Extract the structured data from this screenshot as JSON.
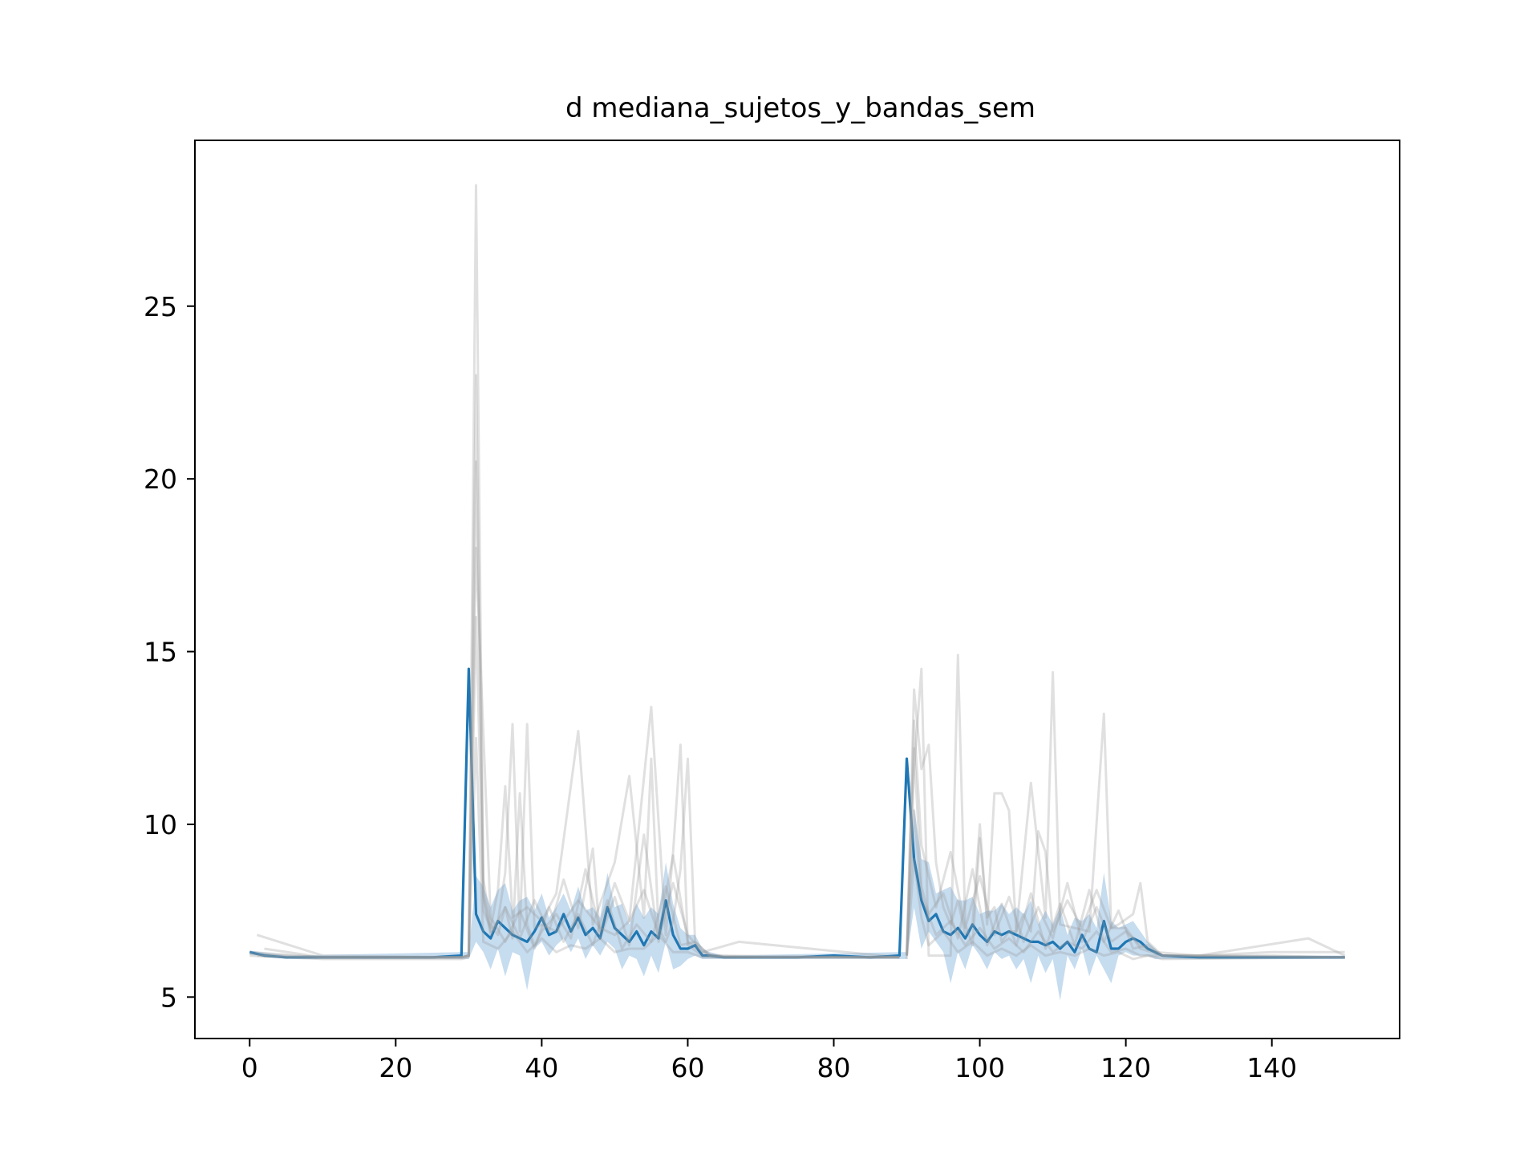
{
  "chart_data": {
    "type": "line",
    "title": "d mediana_sujetos_y_bandas_sem",
    "xlabel": "",
    "ylabel": "",
    "xlim": [
      -7.5,
      157.5
    ],
    "ylim": [
      3.8,
      29.8
    ],
    "x_ticks": [
      0,
      20,
      40,
      60,
      80,
      100,
      120,
      140
    ],
    "y_ticks": [
      5,
      10,
      15,
      20,
      25
    ],
    "grid": false,
    "legend": "none",
    "colors": {
      "median": "#1f77b4",
      "band": "#aecde8",
      "subjects": "#999999"
    },
    "median": {
      "x": [
        0,
        2,
        5,
        10,
        15,
        20,
        25,
        29,
        30,
        31,
        32,
        33,
        34,
        35,
        36,
        37,
        38,
        39,
        40,
        41,
        42,
        43,
        44,
        45,
        46,
        47,
        48,
        49,
        50,
        51,
        52,
        53,
        54,
        55,
        56,
        57,
        58,
        59,
        60,
        61,
        62,
        63,
        65,
        70,
        75,
        80,
        85,
        89,
        90,
        91,
        92,
        93,
        94,
        95,
        96,
        97,
        98,
        99,
        100,
        101,
        102,
        103,
        104,
        105,
        106,
        107,
        108,
        109,
        110,
        111,
        112,
        113,
        114,
        115,
        116,
        117,
        118,
        119,
        120,
        121,
        122,
        123,
        124,
        125,
        130,
        135,
        140,
        145,
        150
      ],
      "values": [
        6.3,
        6.2,
        6.15,
        6.15,
        6.15,
        6.15,
        6.15,
        6.2,
        14.5,
        7.4,
        6.9,
        6.7,
        7.2,
        7.0,
        6.8,
        6.7,
        6.6,
        6.9,
        7.3,
        6.8,
        6.9,
        7.4,
        6.9,
        7.3,
        6.8,
        7.0,
        6.7,
        7.6,
        7.0,
        6.8,
        6.6,
        6.9,
        6.5,
        6.9,
        6.7,
        7.8,
        6.8,
        6.4,
        6.4,
        6.5,
        6.2,
        6.2,
        6.15,
        6.15,
        6.15,
        6.2,
        6.15,
        6.2,
        11.9,
        9.0,
        7.8,
        7.2,
        7.4,
        6.9,
        6.8,
        7.0,
        6.7,
        7.1,
        6.8,
        6.6,
        6.9,
        6.8,
        6.9,
        6.8,
        6.7,
        6.6,
        6.6,
        6.5,
        6.6,
        6.4,
        6.6,
        6.3,
        6.8,
        6.4,
        6.3,
        7.2,
        6.4,
        6.4,
        6.6,
        6.7,
        6.6,
        6.4,
        6.3,
        6.2,
        6.15,
        6.15,
        6.15,
        6.15,
        6.15
      ]
    },
    "sem_band": {
      "x": [
        0,
        5,
        29,
        30,
        31,
        32,
        33,
        34,
        35,
        36,
        37,
        38,
        39,
        40,
        41,
        42,
        43,
        44,
        45,
        46,
        47,
        48,
        49,
        50,
        51,
        52,
        53,
        54,
        55,
        56,
        57,
        58,
        59,
        60,
        61,
        62,
        63,
        65,
        89,
        90,
        91,
        92,
        93,
        94,
        95,
        96,
        97,
        98,
        99,
        100,
        101,
        102,
        103,
        104,
        105,
        106,
        107,
        108,
        109,
        110,
        111,
        112,
        113,
        114,
        115,
        116,
        117,
        118,
        119,
        120,
        121,
        122,
        123,
        124,
        125,
        150
      ],
      "lower": [
        6.25,
        6.1,
        6.1,
        6.1,
        6.6,
        6.3,
        5.8,
        6.4,
        5.6,
        6.3,
        6.2,
        5.2,
        6.4,
        6.6,
        6.2,
        6.5,
        6.7,
        6.3,
        6.7,
        6.1,
        6.5,
        6.2,
        6.6,
        6.4,
        5.8,
        6.2,
        6.1,
        5.6,
        6.2,
        5.7,
        6.6,
        5.8,
        5.9,
        6.1,
        6.2,
        6.1,
        6.1,
        6.1,
        6.1,
        6.1,
        7.6,
        6.4,
        6.9,
        6.6,
        6.3,
        5.4,
        6.3,
        5.8,
        6.5,
        6.2,
        5.8,
        6.3,
        6.1,
        6.2,
        5.8,
        6.1,
        5.4,
        6.2,
        5.7,
        6.1,
        4.9,
        6.2,
        5.8,
        6.4,
        5.6,
        6.2,
        5.8,
        5.4,
        6.2,
        6.3,
        6.2,
        6.2,
        6.2,
        6.1,
        6.1,
        6.1
      ],
      "upper": [
        6.35,
        6.2,
        6.3,
        6.3,
        8.5,
        8.2,
        7.6,
        8.1,
        8.3,
        7.5,
        7.8,
        7.9,
        7.5,
        8.0,
        7.3,
        7.6,
        8.0,
        7.5,
        8.2,
        7.5,
        7.6,
        7.3,
        8.6,
        7.6,
        7.7,
        7.1,
        7.7,
        7.3,
        7.6,
        7.4,
        8.9,
        7.7,
        7.0,
        6.8,
        6.8,
        6.4,
        6.3,
        6.2,
        6.3,
        6.3,
        10.5,
        9.0,
        8.9,
        8.0,
        8.1,
        8.2,
        7.8,
        7.8,
        7.9,
        7.4,
        7.5,
        7.5,
        7.7,
        7.4,
        7.6,
        7.4,
        7.8,
        7.1,
        7.5,
        7.1,
        7.6,
        6.8,
        7.3,
        7.2,
        7.4,
        7.0,
        8.6,
        7.2,
        7.0,
        7.1,
        7.2,
        6.9,
        6.6,
        6.4,
        6.2,
        6.2
      ]
    },
    "subjects": [
      {
        "x": [
          1,
          5,
          10,
          20,
          29,
          30,
          31,
          32,
          33,
          34,
          35,
          36,
          37,
          38,
          39,
          40,
          42,
          45,
          48,
          50,
          52,
          55,
          57,
          58,
          59,
          60,
          62,
          65,
          70,
          80,
          89
        ],
        "values": [
          6.2,
          6.15,
          6.15,
          6.15,
          6.15,
          6.2,
          28.5,
          8.0,
          6.9,
          7.2,
          8.6,
          12.9,
          6.9,
          12.9,
          7.0,
          7.1,
          6.9,
          7.8,
          7.0,
          6.8,
          7.2,
          13.4,
          6.8,
          9.2,
          12.3,
          6.5,
          6.2,
          6.15,
          6.15,
          6.15,
          6.15
        ]
      },
      {
        "x": [
          1,
          10,
          29,
          30,
          31,
          32,
          33,
          34,
          35,
          36,
          38,
          40,
          42,
          45,
          47,
          50,
          52,
          54,
          55,
          56,
          57,
          58,
          59,
          60,
          61,
          63,
          70,
          89
        ],
        "values": [
          6.8,
          6.2,
          6.15,
          6.2,
          23.0,
          7.5,
          7.0,
          8.1,
          11.1,
          7.3,
          7.6,
          7.2,
          8.0,
          12.7,
          7.1,
          8.9,
          11.4,
          7.3,
          11.9,
          7.0,
          6.6,
          7.2,
          8.7,
          11.9,
          6.6,
          6.2,
          6.15,
          6.15
        ]
      },
      {
        "x": [
          0,
          10,
          29,
          30,
          31,
          32,
          33,
          34,
          35,
          36,
          37,
          38,
          39,
          40,
          42,
          44,
          46,
          48,
          50,
          52,
          54,
          56,
          58,
          60,
          62,
          65,
          89
        ],
        "values": [
          6.3,
          6.15,
          6.15,
          6.2,
          20.5,
          8.4,
          7.1,
          6.8,
          7.6,
          6.7,
          10.9,
          7.1,
          6.5,
          6.9,
          7.4,
          6.7,
          8.7,
          6.9,
          8.3,
          7.2,
          8.1,
          6.8,
          9.1,
          6.6,
          6.3,
          6.15,
          6.15
        ]
      },
      {
        "x": [
          2,
          10,
          29,
          30,
          31,
          32,
          33,
          35,
          37,
          39,
          41,
          43,
          45,
          47,
          48,
          50,
          52,
          54,
          56,
          58,
          60,
          62,
          67,
          89
        ],
        "values": [
          6.4,
          6.15,
          6.15,
          6.2,
          16.0,
          7.9,
          6.8,
          7.6,
          6.7,
          7.8,
          6.9,
          8.4,
          7.0,
          9.3,
          6.7,
          7.9,
          6.5,
          9.7,
          6.6,
          8.3,
          6.8,
          6.3,
          6.6,
          6.15
        ]
      },
      {
        "x": [
          0,
          10,
          29,
          30,
          31,
          33,
          35,
          37,
          39,
          41,
          43,
          45,
          47,
          49,
          51,
          53,
          55,
          57,
          59,
          61,
          63,
          89
        ],
        "values": [
          6.25,
          6.15,
          6.15,
          6.2,
          18.0,
          7.3,
          6.6,
          7.5,
          6.4,
          7.6,
          6.6,
          7.4,
          6.5,
          7.8,
          6.4,
          7.1,
          6.6,
          8.2,
          6.5,
          6.6,
          6.2,
          6.15
        ]
      },
      {
        "x": [
          0,
          10,
          29,
          30,
          31,
          32,
          34,
          36,
          38,
          40,
          42,
          44,
          46,
          48,
          50,
          52,
          54,
          56,
          58,
          60,
          62,
          89
        ],
        "values": [
          6.2,
          6.1,
          6.1,
          6.15,
          12.5,
          6.6,
          6.4,
          6.9,
          6.3,
          6.7,
          6.3,
          6.5,
          6.4,
          6.7,
          6.3,
          6.4,
          6.4,
          6.8,
          6.3,
          6.3,
          6.15,
          6.15
        ]
      },
      {
        "x": [
          90,
          91,
          92,
          93,
          94,
          95,
          96,
          97,
          98,
          99,
          100,
          101,
          102,
          103,
          104,
          105,
          107,
          109,
          110,
          111,
          113,
          115,
          117,
          118,
          119,
          121,
          122,
          123,
          125,
          130,
          140,
          150
        ],
        "values": [
          6.2,
          11.6,
          14.5,
          6.2,
          6.2,
          6.2,
          6.2,
          14.9,
          7.1,
          6.5,
          9.6,
          7.3,
          7.6,
          6.6,
          6.9,
          6.9,
          11.2,
          7.3,
          14.4,
          7.1,
          7.0,
          6.9,
          13.2,
          7.0,
          7.1,
          7.4,
          8.3,
          6.6,
          6.2,
          6.2,
          6.3,
          6.3
        ]
      },
      {
        "x": [
          90,
          91,
          92,
          93,
          94,
          95,
          96,
          97,
          98,
          99,
          100,
          101,
          102,
          103,
          104,
          105,
          106,
          107,
          108,
          109,
          110,
          112,
          114,
          116,
          118,
          120,
          122,
          125,
          130,
          140,
          150
        ],
        "values": [
          6.2,
          13.9,
          11.6,
          12.3,
          8.9,
          7.6,
          7.1,
          7.8,
          6.8,
          7.1,
          10.0,
          7.1,
          10.9,
          10.9,
          10.4,
          6.9,
          7.4,
          6.9,
          9.8,
          9.2,
          6.9,
          7.8,
          7.0,
          8.1,
          7.0,
          7.0,
          6.4,
          6.2,
          6.2,
          6.2,
          6.15
        ]
      },
      {
        "x": [
          90,
          91,
          92,
          93,
          94,
          96,
          98,
          100,
          102,
          104,
          106,
          108,
          110,
          112,
          114,
          116,
          118,
          120,
          122,
          124,
          130,
          145,
          150
        ],
        "values": [
          6.2,
          13.0,
          9.4,
          8.5,
          7.6,
          9.2,
          7.0,
          8.5,
          6.8,
          7.9,
          6.6,
          7.6,
          6.7,
          8.3,
          6.6,
          7.6,
          6.6,
          6.9,
          6.5,
          6.3,
          6.2,
          6.7,
          6.2
        ]
      },
      {
        "x": [
          90,
          91,
          92,
          93,
          95,
          97,
          99,
          101,
          103,
          105,
          107,
          109,
          111,
          113,
          115,
          117,
          119,
          121,
          123,
          125,
          150
        ],
        "values": [
          6.2,
          12.2,
          8.2,
          7.4,
          8.0,
          6.7,
          8.7,
          6.5,
          7.7,
          6.5,
          8.0,
          6.4,
          7.7,
          6.5,
          8.1,
          6.6,
          7.5,
          6.4,
          6.5,
          6.2,
          6.15
        ]
      },
      {
        "x": [
          90,
          91,
          92,
          94,
          96,
          98,
          100,
          102,
          104,
          106,
          108,
          110,
          112,
          114,
          116,
          118,
          120,
          122,
          124,
          150
        ],
        "values": [
          6.2,
          10.4,
          7.9,
          6.8,
          7.2,
          6.5,
          7.0,
          6.4,
          6.7,
          6.3,
          6.9,
          6.3,
          6.6,
          6.4,
          6.9,
          6.3,
          6.4,
          6.2,
          6.2,
          6.15
        ]
      },
      {
        "x": [
          90,
          91,
          92,
          93,
          95,
          97,
          99,
          101,
          103,
          105,
          107,
          109,
          111,
          113,
          115,
          117,
          119,
          121,
          123,
          125,
          150
        ],
        "values": [
          6.1,
          9.0,
          7.3,
          6.5,
          6.9,
          6.3,
          6.6,
          6.2,
          6.4,
          6.2,
          6.5,
          6.2,
          6.3,
          6.2,
          6.4,
          6.2,
          6.3,
          6.1,
          6.2,
          6.1,
          6.15
        ]
      }
    ]
  }
}
